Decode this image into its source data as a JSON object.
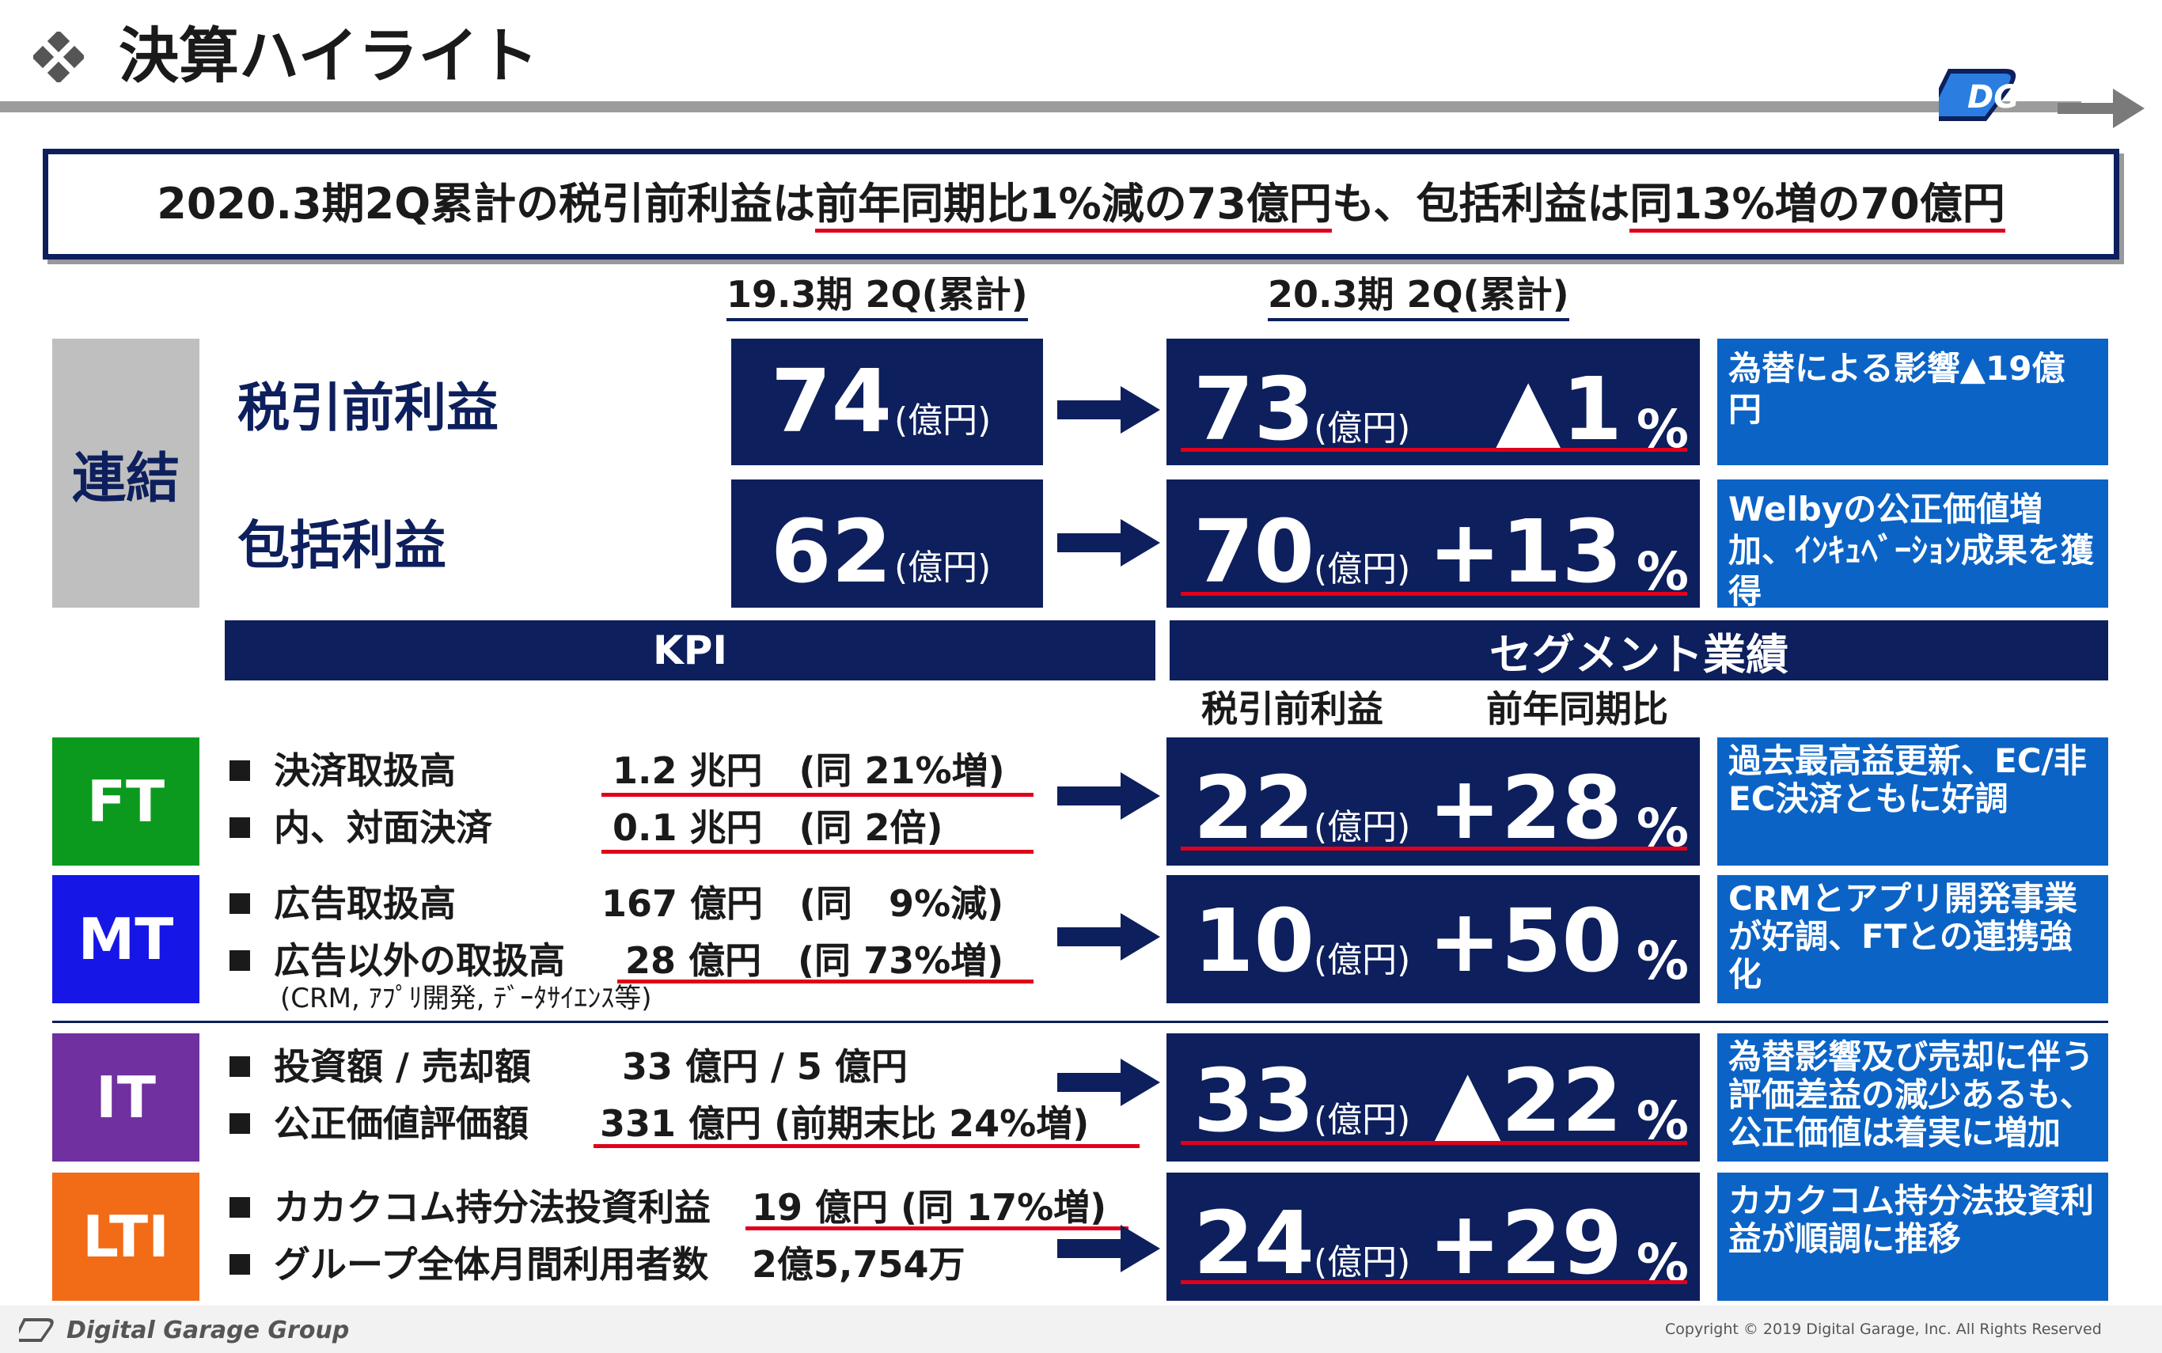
{
  "header": {
    "title": "決算ハイライト",
    "copyright": "Copyright © 2019 Digital Garage, Inc. All Rights Reserved",
    "company": "Digital Garage Group",
    "logo_text": "DG"
  },
  "summary": {
    "part1": "2020.3期2Q累計の税引前利益は",
    "part2": "前年同期比1%減の73億円",
    "part3": "も、包括利益は",
    "part4": "同13%増の70億円"
  },
  "periods": {
    "prev": "19.3期 2Q(累計)",
    "curr": "20.3期 2Q(累計)"
  },
  "consolidated": {
    "label": "連結",
    "rows": [
      {
        "name": "税引前利益",
        "prev": "74",
        "curr": "73",
        "unit": "(億円)",
        "change": "▲1",
        "pct": "%",
        "note": "為替による影響▲19億円"
      },
      {
        "name": "包括利益",
        "prev": "62",
        "curr": "70",
        "unit": "(億円)",
        "change": "+13",
        "pct": "%",
        "note": "Welbyの公正価値増加、ｲﾝｷｭﾍﾞｰｼｮﾝ成果を獲得"
      }
    ]
  },
  "bars": {
    "kpi": "KPI",
    "segment": "セグメント業績",
    "col1": "税引前利益",
    "col2": "前年同期比"
  },
  "segments": [
    {
      "label": "FT",
      "color": "#0c9a1e",
      "kpis": [
        {
          "name": "決済取扱高",
          "value": "1.2 兆円　(同 21%増)"
        },
        {
          "name": "内、対面決済",
          "value": "0.1 兆円　(同 2倍)"
        }
      ],
      "sub": "",
      "profit": "22",
      "unit": "(億円)",
      "change": "+28",
      "pct": "%",
      "note": "過去最高益更新、EC/非EC決済ともに好調"
    },
    {
      "label": "MT",
      "color": "#1616e6",
      "kpis": [
        {
          "name": "広告取扱高",
          "value": "167 億円　(同　9%減)"
        },
        {
          "name": "広告以外の取扱高",
          "value": "28 億円　(同 73%増)"
        }
      ],
      "sub": "(CRM, ｱﾌﾟﾘ開発, ﾃﾞｰﾀｻｲｴﾝｽ等)",
      "profit": "10",
      "unit": "(億円)",
      "change": "+50",
      "pct": "%",
      "note": "CRMとアプリ開発事業が好調、FTとの連携強化"
    },
    {
      "label": "IT",
      "color": "#7030a0",
      "kpis": [
        {
          "name": "投資額 / 売却額",
          "value": "33 億円 / 5 億円"
        },
        {
          "name": "公正価値評価額",
          "value": "331 億円 (前期末比 24%増)"
        }
      ],
      "sub": "",
      "profit": "33",
      "unit": "(億円)",
      "change": "▲22",
      "pct": "%",
      "note": "為替影響及び売却に伴う評価差益の減少あるも、公正価値は着実に増加"
    },
    {
      "label": "LTI",
      "color": "#f26b16",
      "kpis": [
        {
          "name": "カカクコム持分法投資利益",
          "value": "19 億円 (同 17%増)"
        },
        {
          "name": "グループ全体月間利用者数",
          "value": "2億5,754万"
        }
      ],
      "sub": "",
      "profit": "24",
      "unit": "(億円)",
      "change": "+29",
      "pct": "%",
      "note": "カカクコム持分法投資利益が順調に推移"
    }
  ]
}
